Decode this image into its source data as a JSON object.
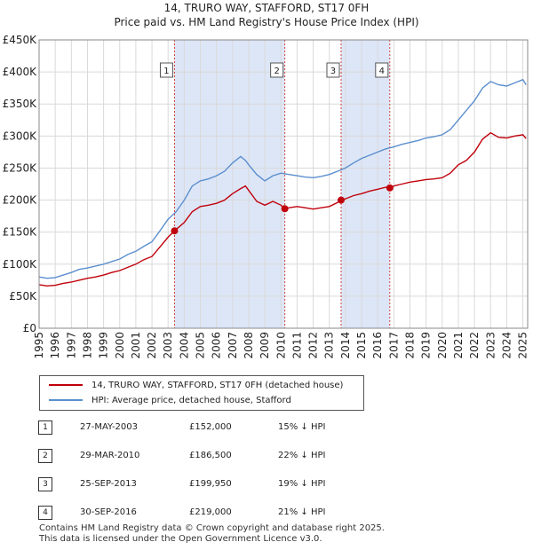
{
  "title": "14, TRURO WAY, STAFFORD, ST17 0FH",
  "subtitle": "Price paid vs. HM Land Registry's House Price Index (HPI)",
  "legend": {
    "property": "14, TRURO WAY, STAFFORD, ST17 0FH (detached house)",
    "hpi": "HPI: Average price, detached house, Stafford"
  },
  "sales": [
    {
      "n": "1",
      "date": "27-MAY-2003",
      "price": "£152,000",
      "hpi": "15% ↓ HPI"
    },
    {
      "n": "2",
      "date": "29-MAR-2010",
      "price": "£186,500",
      "hpi": "22% ↓ HPI"
    },
    {
      "n": "3",
      "date": "25-SEP-2013",
      "price": "£199,950",
      "hpi": "19% ↓ HPI"
    },
    {
      "n": "4",
      "date": "30-SEP-2016",
      "price": "£219,000",
      "hpi": "21% ↓ HPI"
    }
  ],
  "footer": {
    "line1": "Contains HM Land Registry data © Crown copyright and database right 2025.",
    "line2": "This data is licensed under the Open Government Licence v3.0."
  },
  "colors": {
    "property": "#c0000b",
    "hpi": "#5b8fcf",
    "band": "#dde6f7",
    "grid": "#d9d9d9"
  },
  "chart_data": {
    "type": "line",
    "title": "14, TRURO WAY, STAFFORD, ST17 0FH",
    "subtitle": "Price paid vs. HM Land Registry's House Price Index (HPI)",
    "xlabel": "",
    "ylabel": "",
    "xlim": [
      1995,
      2025.3
    ],
    "ylim": [
      0,
      450000
    ],
    "grid": true,
    "legend_position": "below",
    "x_ticks": [
      "1995",
      "1996",
      "1997",
      "1998",
      "1999",
      "2000",
      "2001",
      "2002",
      "2003",
      "2004",
      "2005",
      "2006",
      "2007",
      "2008",
      "2009",
      "2010",
      "2011",
      "2012",
      "2013",
      "2014",
      "2015",
      "2016",
      "2017",
      "2018",
      "2019",
      "2020",
      "2021",
      "2022",
      "2023",
      "2024",
      "2025"
    ],
    "y_ticks": [
      {
        "v": 0,
        "label": "£0"
      },
      {
        "v": 50000,
        "label": "£50K"
      },
      {
        "v": 100000,
        "label": "£100K"
      },
      {
        "v": 150000,
        "label": "£150K"
      },
      {
        "v": 200000,
        "label": "£200K"
      },
      {
        "v": 250000,
        "label": "£250K"
      },
      {
        "v": 300000,
        "label": "£300K"
      },
      {
        "v": 350000,
        "label": "£350K"
      },
      {
        "v": 400000,
        "label": "£400K"
      },
      {
        "v": 450000,
        "label": "£450K"
      }
    ],
    "shaded_periods": [
      [
        2003.4,
        2010.24
      ],
      [
        2013.73,
        2016.75
      ]
    ],
    "markers": [
      {
        "label": "1",
        "x": 2003.4,
        "y": 152000
      },
      {
        "label": "2",
        "x": 2010.24,
        "y": 186500
      },
      {
        "label": "3",
        "x": 2013.73,
        "y": 199950
      },
      {
        "label": "4",
        "x": 2016.75,
        "y": 219000
      }
    ],
    "series": [
      {
        "name": "HPI: Average price, detached house, Stafford",
        "points": [
          [
            1995,
            80000
          ],
          [
            1995.5,
            78000
          ],
          [
            1996,
            79000
          ],
          [
            1996.5,
            83000
          ],
          [
            1997,
            87000
          ],
          [
            1997.5,
            92000
          ],
          [
            1998,
            94000
          ],
          [
            1998.5,
            97000
          ],
          [
            1999,
            100000
          ],
          [
            1999.5,
            104000
          ],
          [
            2000,
            108000
          ],
          [
            2000.5,
            115000
          ],
          [
            2001,
            120000
          ],
          [
            2001.5,
            128000
          ],
          [
            2002,
            135000
          ],
          [
            2002.5,
            152000
          ],
          [
            2003,
            170000
          ],
          [
            2003.5,
            182000
          ],
          [
            2004,
            200000
          ],
          [
            2004.5,
            222000
          ],
          [
            2005,
            230000
          ],
          [
            2005.5,
            233000
          ],
          [
            2006,
            238000
          ],
          [
            2006.5,
            245000
          ],
          [
            2007,
            258000
          ],
          [
            2007.5,
            268000
          ],
          [
            2007.8,
            262000
          ],
          [
            2008,
            255000
          ],
          [
            2008.5,
            240000
          ],
          [
            2009,
            230000
          ],
          [
            2009.5,
            238000
          ],
          [
            2010,
            242000
          ],
          [
            2010.5,
            240000
          ],
          [
            2011,
            238000
          ],
          [
            2011.5,
            236000
          ],
          [
            2012,
            235000
          ],
          [
            2012.5,
            237000
          ],
          [
            2013,
            240000
          ],
          [
            2013.5,
            245000
          ],
          [
            2014,
            250000
          ],
          [
            2014.5,
            258000
          ],
          [
            2015,
            265000
          ],
          [
            2015.5,
            270000
          ],
          [
            2016,
            275000
          ],
          [
            2016.5,
            280000
          ],
          [
            2017,
            283000
          ],
          [
            2017.5,
            287000
          ],
          [
            2018,
            290000
          ],
          [
            2018.5,
            293000
          ],
          [
            2019,
            297000
          ],
          [
            2019.5,
            299000
          ],
          [
            2020,
            302000
          ],
          [
            2020.5,
            310000
          ],
          [
            2021,
            325000
          ],
          [
            2021.5,
            340000
          ],
          [
            2022,
            355000
          ],
          [
            2022.5,
            375000
          ],
          [
            2023,
            385000
          ],
          [
            2023.5,
            380000
          ],
          [
            2024,
            378000
          ],
          [
            2024.5,
            383000
          ],
          [
            2025,
            388000
          ],
          [
            2025.2,
            380000
          ]
        ]
      },
      {
        "name": "14, TRURO WAY, STAFFORD, ST17 0FH (detached house)",
        "points": [
          [
            1995,
            68000
          ],
          [
            1995.5,
            66000
          ],
          [
            1996,
            67000
          ],
          [
            1996.5,
            70000
          ],
          [
            1997,
            72000
          ],
          [
            1997.5,
            75000
          ],
          [
            1998,
            78000
          ],
          [
            1998.5,
            80000
          ],
          [
            1999,
            83000
          ],
          [
            1999.5,
            87000
          ],
          [
            2000,
            90000
          ],
          [
            2000.5,
            95000
          ],
          [
            2001,
            100000
          ],
          [
            2001.5,
            107000
          ],
          [
            2002,
            112000
          ],
          [
            2002.5,
            127000
          ],
          [
            2003,
            142000
          ],
          [
            2003.4,
            152000
          ],
          [
            2004,
            165000
          ],
          [
            2004.5,
            182000
          ],
          [
            2005,
            190000
          ],
          [
            2005.5,
            192000
          ],
          [
            2006,
            195000
          ],
          [
            2006.5,
            200000
          ],
          [
            2007,
            210000
          ],
          [
            2007.5,
            218000
          ],
          [
            2007.8,
            222000
          ],
          [
            2008,
            215000
          ],
          [
            2008.5,
            198000
          ],
          [
            2009,
            192000
          ],
          [
            2009.5,
            198000
          ],
          [
            2010,
            192000
          ],
          [
            2010.24,
            186500
          ],
          [
            2010.5,
            188000
          ],
          [
            2011,
            190000
          ],
          [
            2011.5,
            188000
          ],
          [
            2012,
            186000
          ],
          [
            2012.5,
            188000
          ],
          [
            2013,
            190000
          ],
          [
            2013.5,
            196000
          ],
          [
            2013.73,
            199950
          ],
          [
            2014,
            202000
          ],
          [
            2014.5,
            207000
          ],
          [
            2015,
            210000
          ],
          [
            2015.5,
            214000
          ],
          [
            2016,
            217000
          ],
          [
            2016.5,
            220000
          ],
          [
            2016.75,
            219000
          ],
          [
            2017,
            222000
          ],
          [
            2017.5,
            225000
          ],
          [
            2018,
            228000
          ],
          [
            2018.5,
            230000
          ],
          [
            2019,
            232000
          ],
          [
            2019.5,
            233000
          ],
          [
            2020,
            235000
          ],
          [
            2020.5,
            242000
          ],
          [
            2021,
            255000
          ],
          [
            2021.5,
            262000
          ],
          [
            2022,
            275000
          ],
          [
            2022.5,
            295000
          ],
          [
            2023,
            305000
          ],
          [
            2023.5,
            298000
          ],
          [
            2024,
            297000
          ],
          [
            2024.5,
            300000
          ],
          [
            2025,
            302000
          ],
          [
            2025.2,
            296000
          ]
        ]
      }
    ]
  }
}
